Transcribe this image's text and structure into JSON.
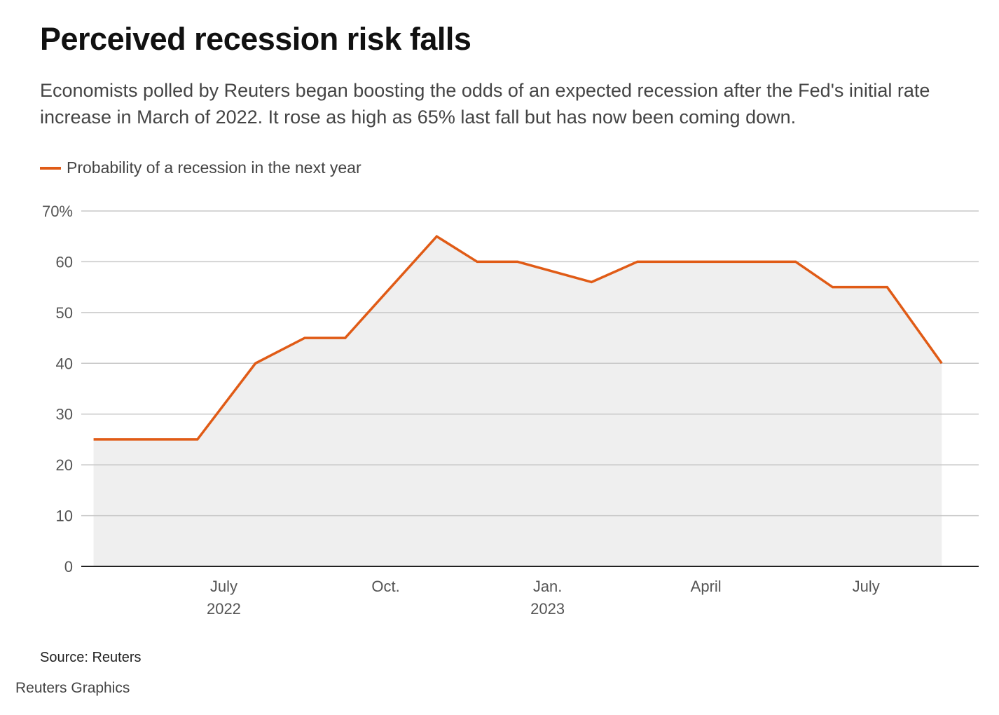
{
  "title": "Perceived recession risk falls",
  "subtitle": "Economists polled by Reuters began boosting the odds of an expected recession after the Fed's initial rate increase in March of 2022. It rose as high as 65% last fall but has now been coming down.",
  "source": "Source: Reuters",
  "credit": "Reuters Graphics",
  "colors": {
    "line": "#e05b16",
    "area": "#efefef",
    "grid": "#c8c8c8",
    "axis": "#222222",
    "tick_text": "#555555"
  },
  "chart_data": {
    "type": "area",
    "legend_position": "top-left",
    "grid": true,
    "y_unit_suffix": "%",
    "ylim": [
      0,
      70
    ],
    "y_ticks": [
      0,
      10,
      20,
      30,
      40,
      50,
      60,
      70
    ],
    "y_tick_labels": [
      "0",
      "10",
      "20",
      "30",
      "40",
      "50",
      "60",
      "70%"
    ],
    "xlim": [
      "2022-04-11",
      "2023-09-03"
    ],
    "x_ticks": [
      {
        "date": "2022-07-01",
        "label": "July",
        "sublabel": "2022"
      },
      {
        "date": "2022-10-01",
        "label": "Oct.",
        "sublabel": ""
      },
      {
        "date": "2023-01-01",
        "label": "Jan.",
        "sublabel": "2023"
      },
      {
        "date": "2023-04-01",
        "label": "April",
        "sublabel": ""
      },
      {
        "date": "2023-07-01",
        "label": "July",
        "sublabel": ""
      }
    ],
    "series": [
      {
        "name": "Probability of a recession in the next year",
        "points": [
          {
            "x": "2022-04-18",
            "y": 25
          },
          {
            "x": "2022-06-16",
            "y": 25
          },
          {
            "x": "2022-07-19",
            "y": 40
          },
          {
            "x": "2022-08-16",
            "y": 45
          },
          {
            "x": "2022-09-08",
            "y": 45
          },
          {
            "x": "2022-10-30",
            "y": 65
          },
          {
            "x": "2022-11-22",
            "y": 60
          },
          {
            "x": "2022-12-15",
            "y": 60
          },
          {
            "x": "2023-01-26",
            "y": 56
          },
          {
            "x": "2023-02-21",
            "y": 60
          },
          {
            "x": "2023-05-22",
            "y": 60
          },
          {
            "x": "2023-06-12",
            "y": 55
          },
          {
            "x": "2023-07-13",
            "y": 55
          },
          {
            "x": "2023-08-13",
            "y": 40
          }
        ]
      }
    ]
  }
}
